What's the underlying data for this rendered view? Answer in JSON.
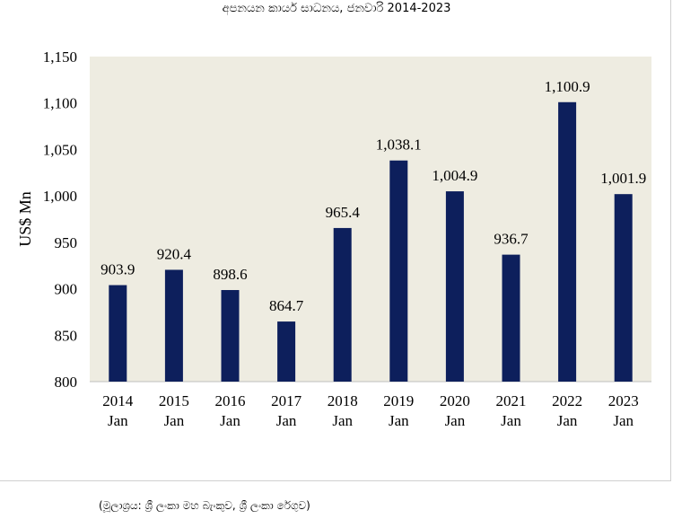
{
  "chart_data": {
    "type": "bar",
    "title": "අපනයන කාර්ය සාධනය, ජනවාරි 2014-2023",
    "xlabel": "",
    "ylabel": "US$ Mn",
    "ylim": [
      800,
      1150
    ],
    "yticks": [
      "800",
      "850",
      "900",
      "950",
      "1,000",
      "1,050",
      "1,100",
      "1,150"
    ],
    "ytick_values": [
      800,
      850,
      900,
      950,
      1000,
      1050,
      1100,
      1150
    ],
    "categories": [
      {
        "year": "2014",
        "month": "Jan"
      },
      {
        "year": "2015",
        "month": "Jan"
      },
      {
        "year": "2016",
        "month": "Jan"
      },
      {
        "year": "2017",
        "month": "Jan"
      },
      {
        "year": "2018",
        "month": "Jan"
      },
      {
        "year": "2019",
        "month": "Jan"
      },
      {
        "year": "2020",
        "month": "Jan"
      },
      {
        "year": "2021",
        "month": "Jan"
      },
      {
        "year": "2022",
        "month": "Jan"
      },
      {
        "year": "2023",
        "month": "Jan"
      }
    ],
    "values": [
      903.9,
      920.4,
      898.6,
      864.7,
      965.4,
      1038.1,
      1004.9,
      936.7,
      1100.9,
      1001.9
    ],
    "value_labels": [
      "903.9",
      "920.4",
      "898.6",
      "864.7",
      "965.4",
      "1,038.1",
      "1,004.9",
      "936.7",
      "1,100.9",
      "1,001.9"
    ],
    "grid": false,
    "legend": "none"
  },
  "colors": {
    "bar": "#0d1f5c",
    "plot_background": "#eeece1",
    "axis": "#bfbfbf"
  },
  "source_note": "(මූලාශ්‍රය: ශ්‍රී ලංකා මහ බැංකුව, ශ්‍රී ලංකා රේගුව)"
}
